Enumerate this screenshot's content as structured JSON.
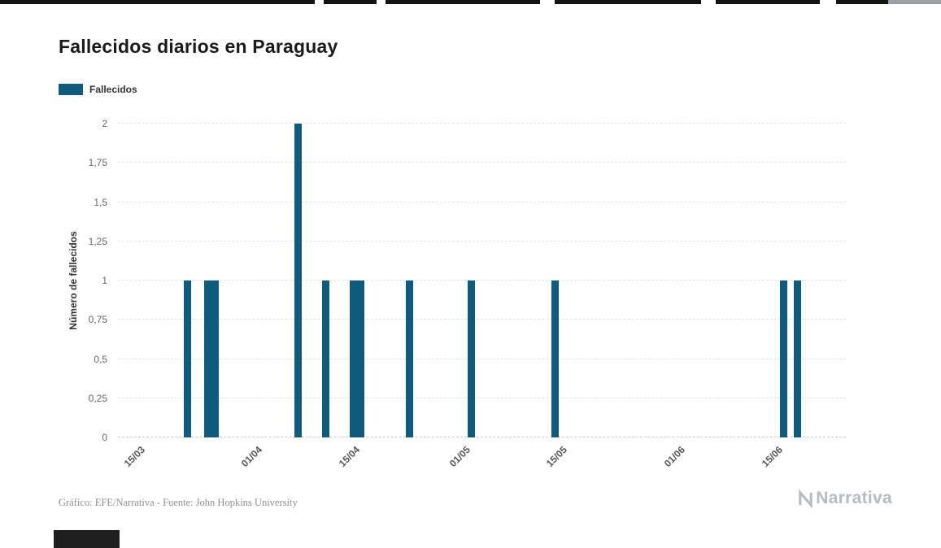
{
  "legend": {
    "label": "Fallecidos"
  },
  "footer": {
    "credit": "Gráfico: EFE/Narrativa - Fuente: John Hopkins University",
    "brand": "Narrativa"
  },
  "chart_data": {
    "type": "bar",
    "title": "Fallecidos diarios en Paraguay",
    "xlabel": "",
    "ylabel": "Número de fallecidos",
    "ylim": [
      0,
      2
    ],
    "grid": true,
    "legend_position": "top-left",
    "bar_color": "#0f5b7d",
    "x_domain": [
      "2020-03-12",
      "2020-06-25"
    ],
    "y_ticks": [
      {
        "value": 0,
        "label": "0"
      },
      {
        "value": 0.25,
        "label": "0,25"
      },
      {
        "value": 0.5,
        "label": "0,5"
      },
      {
        "value": 0.75,
        "label": "0,75"
      },
      {
        "value": 1,
        "label": "1"
      },
      {
        "value": 1.25,
        "label": "1,25"
      },
      {
        "value": 1.5,
        "label": "1,5"
      },
      {
        "value": 1.75,
        "label": "1,75"
      },
      {
        "value": 2,
        "label": "2"
      }
    ],
    "x_ticks": [
      {
        "date": "2020-03-15",
        "label": "15/03"
      },
      {
        "date": "2020-04-01",
        "label": "01/04"
      },
      {
        "date": "2020-04-15",
        "label": "15/04"
      },
      {
        "date": "2020-05-01",
        "label": "01/05"
      },
      {
        "date": "2020-05-15",
        "label": "15/05"
      },
      {
        "date": "2020-06-01",
        "label": "01/06"
      },
      {
        "date": "2020-06-15",
        "label": "15/06"
      }
    ],
    "series": [
      {
        "name": "Fallecidos",
        "color": "#0f5b7d",
        "points": [
          {
            "date": "2020-03-22",
            "value": 1
          },
          {
            "date": "2020-03-25",
            "value": 1
          },
          {
            "date": "2020-03-26",
            "value": 1
          },
          {
            "date": "2020-04-07",
            "value": 2
          },
          {
            "date": "2020-04-11",
            "value": 1
          },
          {
            "date": "2020-04-15",
            "value": 1
          },
          {
            "date": "2020-04-16",
            "value": 1
          },
          {
            "date": "2020-04-23",
            "value": 1
          },
          {
            "date": "2020-05-02",
            "value": 1
          },
          {
            "date": "2020-05-14",
            "value": 1
          },
          {
            "date": "2020-06-16",
            "value": 1
          },
          {
            "date": "2020-06-18",
            "value": 1
          }
        ]
      }
    ]
  }
}
